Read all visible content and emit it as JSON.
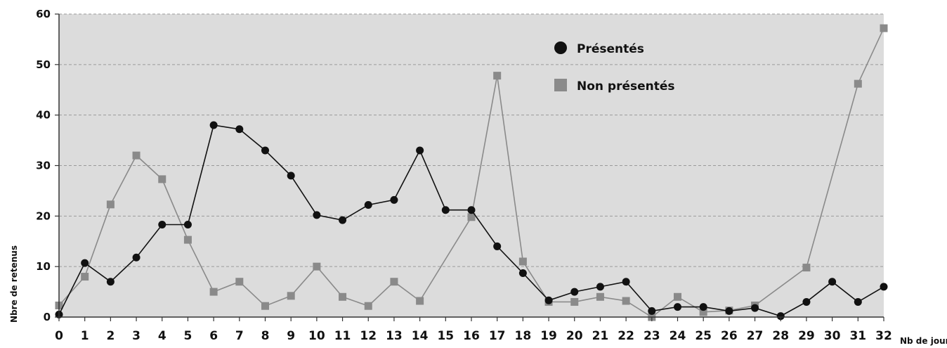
{
  "chart_data": {
    "type": "line",
    "title": "",
    "xlabel": "Nb de jours",
    "ylabel": "Nbre de retenus",
    "ylim": [
      0,
      60
    ],
    "yticks": [
      0,
      10,
      20,
      30,
      40,
      50,
      60
    ],
    "x": [
      0,
      1,
      2,
      3,
      4,
      5,
      6,
      7,
      8,
      9,
      10,
      11,
      12,
      13,
      14,
      15,
      16,
      17,
      18,
      19,
      20,
      21,
      22,
      23,
      24,
      25,
      26,
      27,
      28,
      29,
      30,
      31,
      32
    ],
    "grid": "horizontal dashed",
    "legend_position": "top-right",
    "series": [
      {
        "name": "Présentés",
        "marker": "circle",
        "color": "#111111",
        "values": [
          0.5,
          10.7,
          7,
          11.8,
          18.3,
          18.3,
          38,
          37.2,
          33,
          28,
          20.2,
          19.2,
          22.2,
          23.2,
          33,
          21.2,
          21.2,
          14,
          8.7,
          3.3,
          5,
          6,
          7,
          1.2,
          2,
          2,
          1.2,
          1.8,
          0.2,
          3,
          7,
          3,
          6
        ]
      },
      {
        "name": "Non présentés",
        "marker": "square",
        "color": "#8a8a8a",
        "values": [
          2.3,
          8,
          22.3,
          32,
          27.3,
          15.3,
          5,
          7,
          2.2,
          4.2,
          10,
          4,
          2.2,
          7,
          3.2,
          null,
          19.8,
          47.8,
          11,
          3,
          3,
          4,
          3.2,
          0,
          4,
          1,
          1.3,
          2.3,
          null,
          9.8,
          null,
          46.2,
          57.2
        ]
      }
    ]
  }
}
